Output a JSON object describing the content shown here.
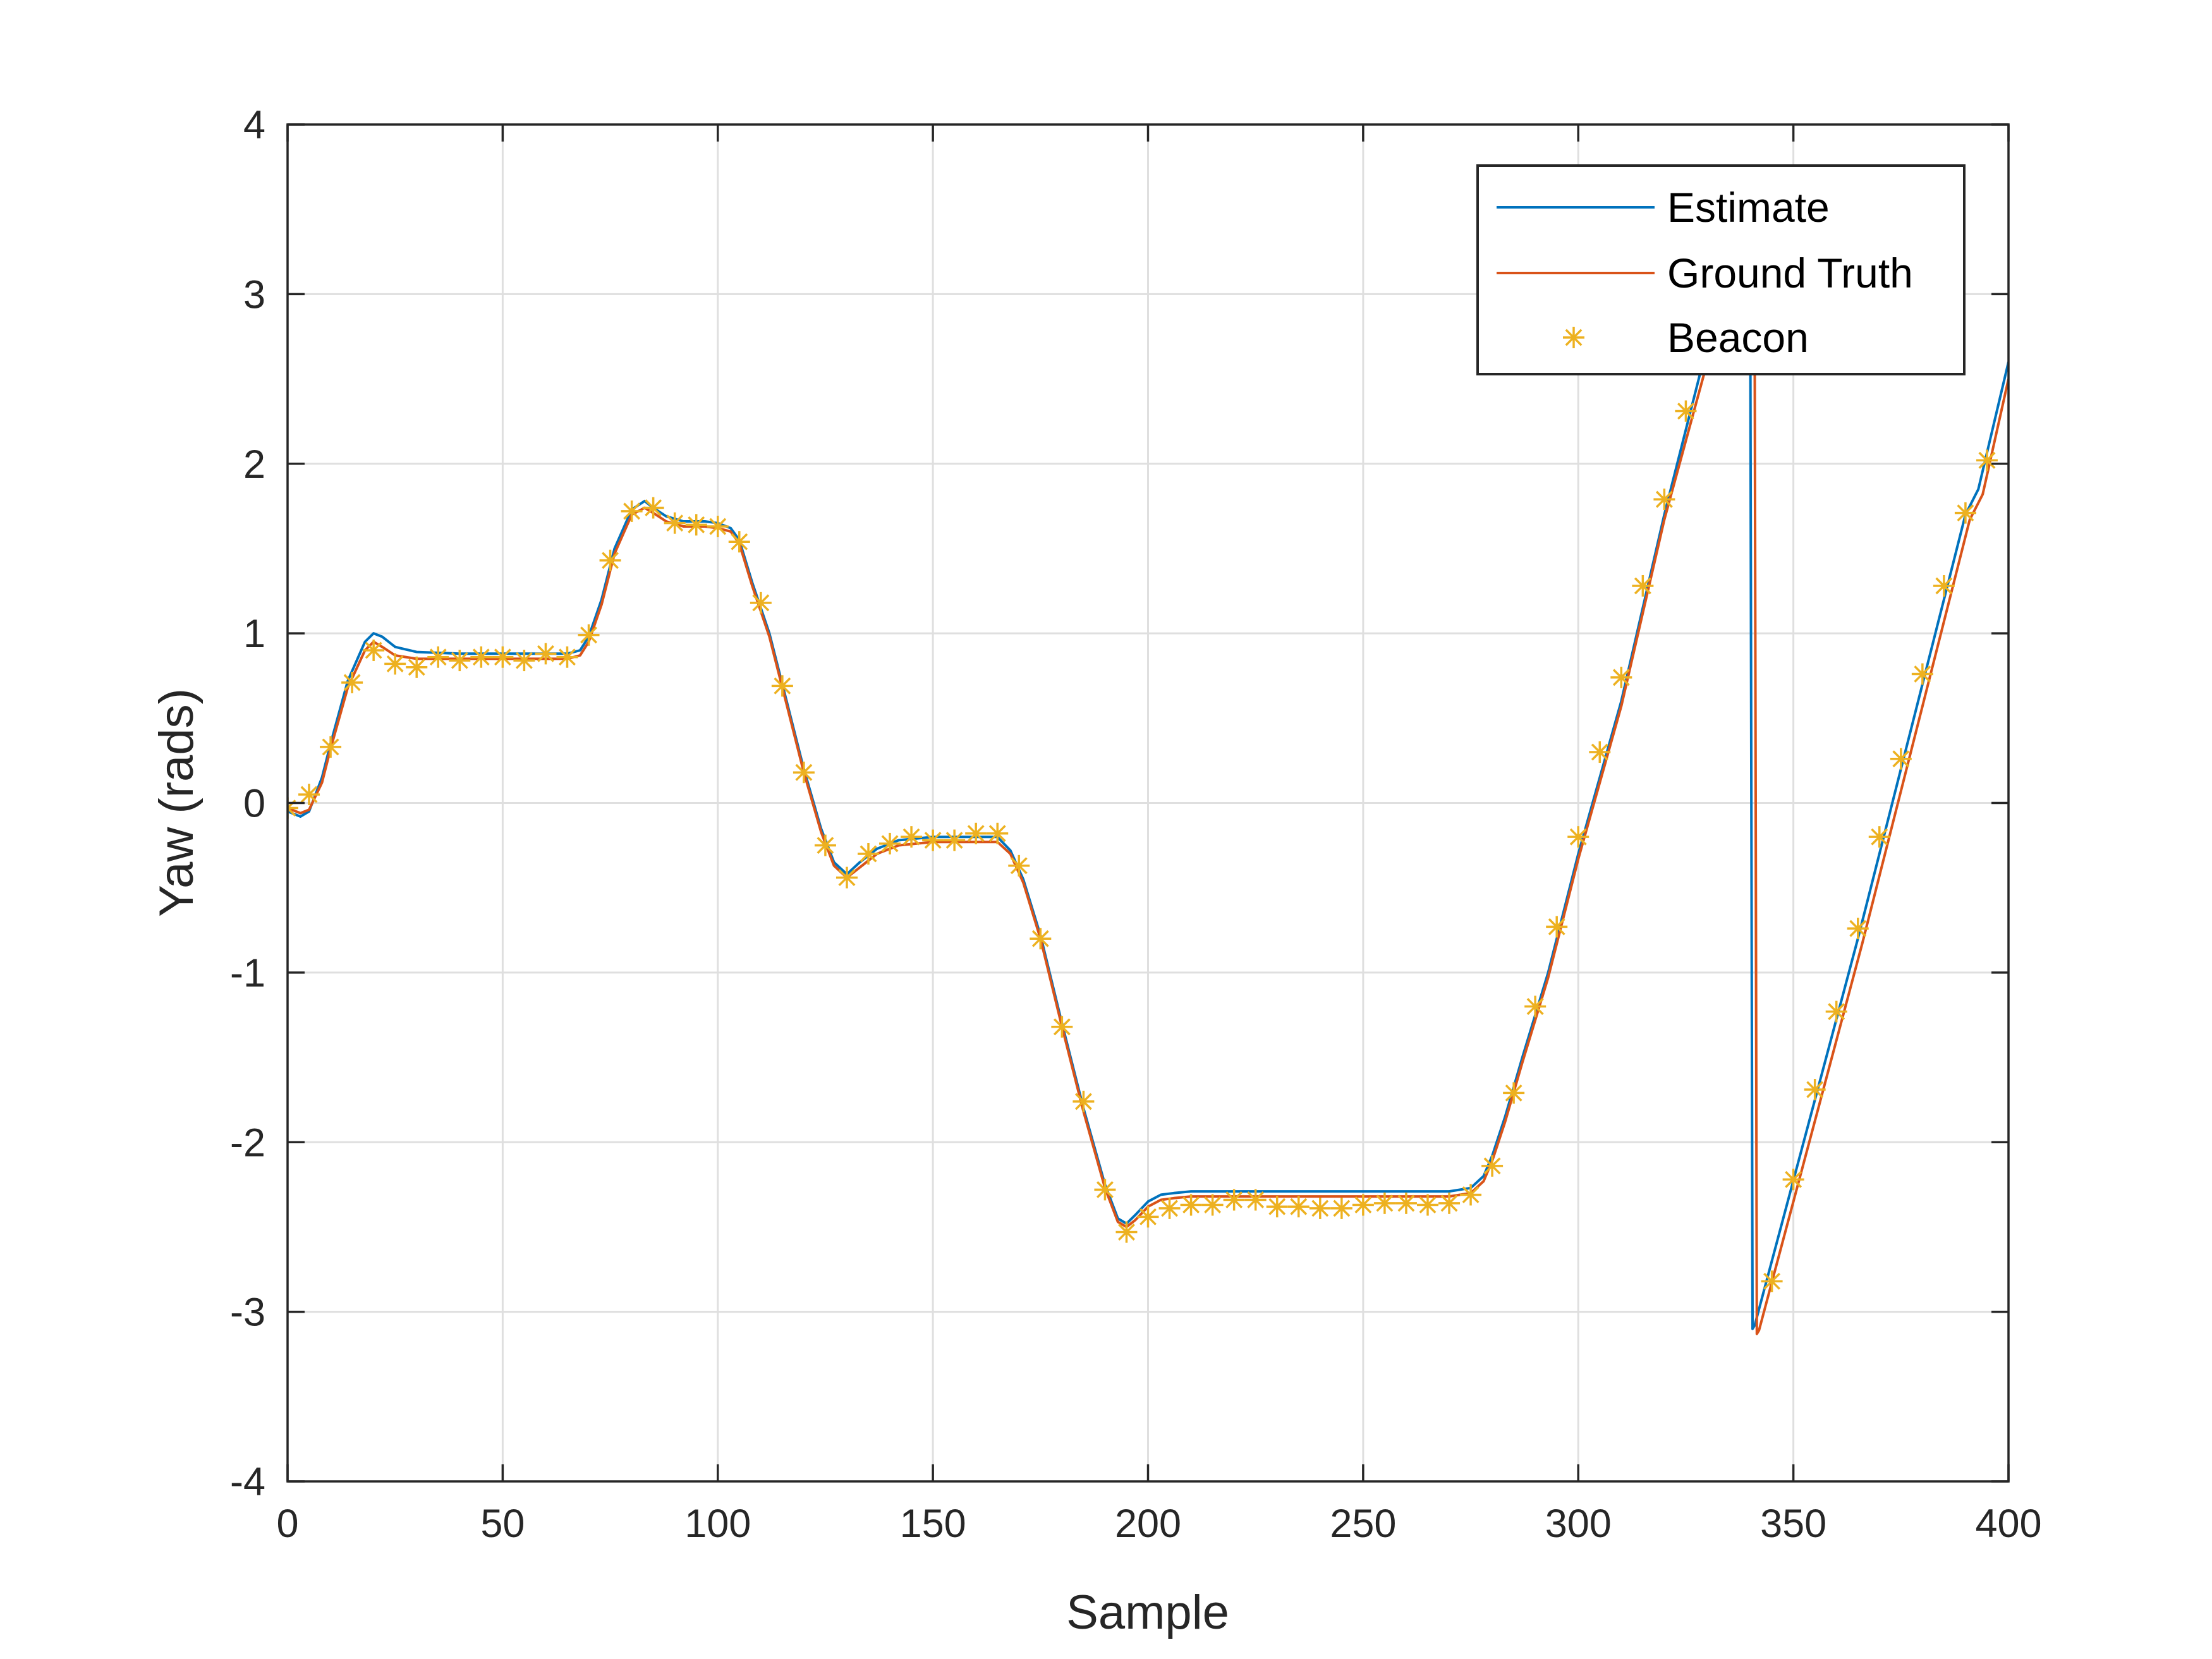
{
  "chart_data": {
    "type": "line",
    "xlabel": "Sample",
    "ylabel": "Yaw (rads)",
    "xlim": [
      0,
      400
    ],
    "ylim": [
      -4,
      4
    ],
    "xticks": [
      0,
      50,
      100,
      150,
      200,
      250,
      300,
      350,
      400
    ],
    "yticks": [
      -4,
      -3,
      -2,
      -1,
      0,
      1,
      2,
      3,
      4
    ],
    "xtick_labels": [
      "0",
      "50",
      "100",
      "150",
      "200",
      "250",
      "300",
      "350",
      "400"
    ],
    "ytick_labels": [
      "-4",
      "-3",
      "-2",
      "-1",
      "0",
      "1",
      "2",
      "3",
      "4"
    ],
    "grid": true,
    "legend_position": "top-right",
    "colors": {
      "estimate": "#0072BD",
      "ground_truth": "#D95319",
      "beacon": "#EDB120",
      "axes": "#262626",
      "grid": "#dfdfdf"
    },
    "series": [
      {
        "name": "Estimate",
        "style": "line",
        "x": [
          0,
          3,
          5,
          8,
          10,
          14,
          18,
          20,
          22,
          25,
          30,
          40,
          50,
          60,
          65,
          68,
          70,
          73,
          76,
          80,
          83,
          85,
          88,
          92,
          97,
          100,
          103,
          105,
          108,
          112,
          116,
          120,
          124,
          127,
          130,
          133,
          137,
          142,
          150,
          160,
          165,
          168,
          171,
          175,
          180,
          185,
          190,
          193,
          195,
          197,
          200,
          203,
          206,
          210,
          220,
          230,
          240,
          250,
          260,
          270,
          275,
          278,
          280,
          283,
          287,
          293,
          300,
          310,
          320,
          329,
          332,
          340,
          340.5,
          341,
          345,
          355,
          365,
          375,
          385,
          390,
          393,
          400
        ],
        "y": [
          -0.05,
          -0.08,
          -0.05,
          0.15,
          0.35,
          0.72,
          0.95,
          1.0,
          0.98,
          0.92,
          0.89,
          0.88,
          0.88,
          0.88,
          0.88,
          0.9,
          0.98,
          1.2,
          1.5,
          1.73,
          1.78,
          1.74,
          1.69,
          1.66,
          1.66,
          1.65,
          1.62,
          1.55,
          1.3,
          1.0,
          0.6,
          0.2,
          -0.15,
          -0.35,
          -0.42,
          -0.35,
          -0.27,
          -0.22,
          -0.2,
          -0.2,
          -0.2,
          -0.28,
          -0.45,
          -0.78,
          -1.3,
          -1.8,
          -2.25,
          -2.45,
          -2.48,
          -2.43,
          -2.35,
          -2.31,
          -2.3,
          -2.29,
          -2.29,
          -2.29,
          -2.29,
          -2.29,
          -2.29,
          -2.29,
          -2.27,
          -2.2,
          -2.08,
          -1.85,
          -1.5,
          -1.0,
          -0.3,
          0.6,
          1.7,
          2.6,
          2.75,
          2.75,
          -3.1,
          -3.08,
          -2.7,
          -1.75,
          -0.8,
          0.2,
          1.2,
          1.7,
          1.85,
          2.6
        ]
      },
      {
        "name": "Ground Truth",
        "style": "line",
        "x": [
          0,
          3,
          5,
          8,
          10,
          14,
          18,
          20,
          22,
          25,
          30,
          40,
          50,
          60,
          65,
          68,
          70,
          73,
          76,
          80,
          83,
          85,
          88,
          92,
          97,
          100,
          103,
          105,
          108,
          112,
          116,
          120,
          124,
          127,
          130,
          133,
          137,
          142,
          150,
          160,
          165,
          168,
          171,
          175,
          180,
          185,
          190,
          193,
          195,
          197,
          200,
          203,
          206,
          210,
          220,
          230,
          240,
          250,
          260,
          270,
          275,
          278,
          280,
          283,
          287,
          293,
          300,
          310,
          320,
          330,
          333,
          341,
          341.5,
          342,
          346,
          356,
          366,
          376,
          386,
          391,
          394,
          400
        ],
        "y": [
          -0.03,
          -0.06,
          -0.04,
          0.12,
          0.32,
          0.68,
          0.9,
          0.95,
          0.92,
          0.87,
          0.85,
          0.85,
          0.85,
          0.85,
          0.85,
          0.87,
          0.95,
          1.17,
          1.47,
          1.7,
          1.74,
          1.71,
          1.66,
          1.63,
          1.63,
          1.62,
          1.6,
          1.53,
          1.28,
          0.98,
          0.58,
          0.18,
          -0.17,
          -0.37,
          -0.44,
          -0.38,
          -0.3,
          -0.25,
          -0.23,
          -0.23,
          -0.23,
          -0.3,
          -0.47,
          -0.8,
          -1.32,
          -1.82,
          -2.27,
          -2.47,
          -2.5,
          -2.46,
          -2.38,
          -2.34,
          -2.33,
          -2.32,
          -2.32,
          -2.32,
          -2.32,
          -2.32,
          -2.32,
          -2.32,
          -2.3,
          -2.23,
          -2.11,
          -1.88,
          -1.53,
          -1.03,
          -0.33,
          0.57,
          1.67,
          2.6,
          2.75,
          2.75,
          -3.13,
          -3.11,
          -2.73,
          -1.78,
          -0.83,
          0.17,
          1.17,
          1.67,
          1.82,
          2.5
        ]
      },
      {
        "name": "Beacon",
        "style": "marker",
        "marker": "asterisk",
        "x": [
          0,
          5,
          10,
          15,
          20,
          25,
          30,
          35,
          40,
          45,
          50,
          55,
          60,
          65,
          70,
          75,
          80,
          85,
          90,
          95,
          100,
          105,
          110,
          115,
          120,
          125,
          130,
          135,
          140,
          145,
          150,
          155,
          160,
          165,
          170,
          175,
          180,
          185,
          190,
          195,
          200,
          205,
          210,
          215,
          220,
          225,
          230,
          235,
          240,
          245,
          250,
          255,
          260,
          265,
          270,
          275,
          280,
          285,
          290,
          295,
          300,
          305,
          310,
          315,
          320,
          325,
          345,
          350,
          355,
          360,
          365,
          370,
          375,
          380,
          385,
          390,
          395
        ],
        "y": [
          -0.03,
          0.05,
          0.33,
          0.71,
          0.9,
          0.82,
          0.8,
          0.86,
          0.84,
          0.86,
          0.86,
          0.84,
          0.88,
          0.86,
          0.99,
          1.43,
          1.72,
          1.74,
          1.65,
          1.64,
          1.63,
          1.54,
          1.18,
          0.69,
          0.18,
          -0.25,
          -0.44,
          -0.3,
          -0.24,
          -0.2,
          -0.22,
          -0.22,
          -0.18,
          -0.18,
          -0.37,
          -0.8,
          -1.32,
          -1.76,
          -2.28,
          -2.53,
          -2.44,
          -2.39,
          -2.37,
          -2.37,
          -2.34,
          -2.34,
          -2.38,
          -2.38,
          -2.39,
          -2.39,
          -2.37,
          -2.36,
          -2.36,
          -2.37,
          -2.36,
          -2.31,
          -2.14,
          -1.71,
          -1.2,
          -0.73,
          -0.2,
          0.3,
          0.74,
          1.28,
          1.79,
          2.31,
          -2.82,
          -2.22,
          -1.69,
          -1.23,
          -0.74,
          -0.2,
          0.26,
          0.76,
          1.28,
          1.71,
          2.02
        ]
      }
    ]
  }
}
